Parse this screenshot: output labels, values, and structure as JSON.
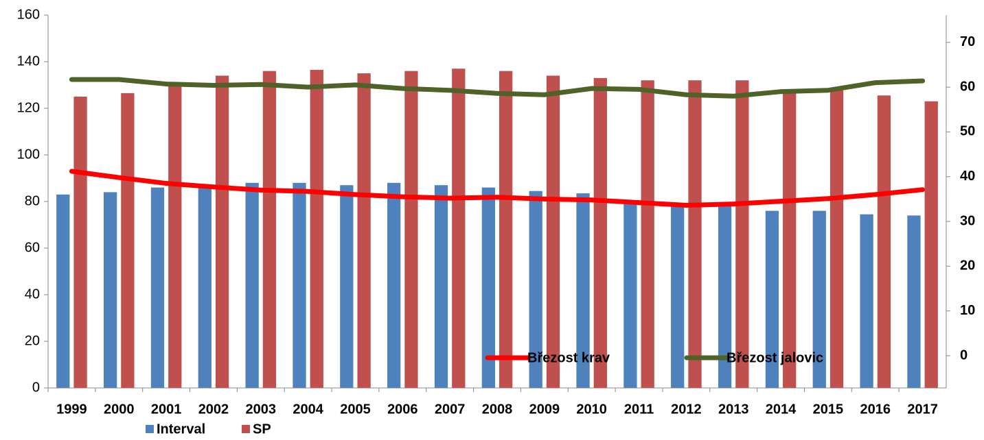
{
  "chart_data": {
    "type": "bar_line",
    "categories": [
      "1999",
      "2000",
      "2001",
      "2002",
      "2003",
      "2004",
      "2005",
      "2006",
      "2007",
      "2008",
      "2009",
      "2010",
      "2011",
      "2012",
      "2013",
      "2014",
      "2015",
      "2016",
      "2017"
    ],
    "series": [
      {
        "name": "Interval",
        "color": "#4f81bd",
        "type": "bar",
        "values": [
          83,
          84,
          86,
          86,
          88,
          88,
          87,
          88,
          87,
          86,
          84.5,
          83.5,
          80,
          79,
          79,
          76,
          76,
          74.5,
          74
        ]
      },
      {
        "name": "SP",
        "color": "#c0504d",
        "type": "bar",
        "values": [
          125,
          126.5,
          130,
          134,
          136,
          136.5,
          135,
          136,
          137,
          136,
          134,
          133,
          132,
          132,
          132,
          128,
          128,
          125.5,
          123
        ]
      },
      {
        "name": "Březost krav",
        "color": "#ff0000",
        "type": "line",
        "axis": "y2",
        "values": [
          41.2,
          39.8,
          38.5,
          37.7,
          37,
          36.7,
          36,
          35.5,
          35.2,
          35.4,
          35,
          34.8,
          34.2,
          33.6,
          33.9,
          34.5,
          35.1,
          36,
          37.1
        ]
      },
      {
        "name": "Březost jalovic",
        "color": "#4f6228",
        "type": "line",
        "axis": "y2",
        "values": [
          61.7,
          61.7,
          60.7,
          60.4,
          60.6,
          60,
          60.5,
          59.7,
          59.3,
          58.6,
          58.3,
          59.7,
          59.5,
          58.3,
          58,
          59,
          59.3,
          61,
          61.4
        ]
      }
    ],
    "ylim": [
      0,
      160
    ],
    "yticks": [
      0,
      20,
      40,
      60,
      80,
      100,
      120,
      140,
      160
    ],
    "y2lim": [
      -7.2,
      76.1
    ],
    "y2ticks": [
      0,
      10,
      20,
      30,
      40,
      50,
      60,
      70
    ],
    "grid": false
  }
}
